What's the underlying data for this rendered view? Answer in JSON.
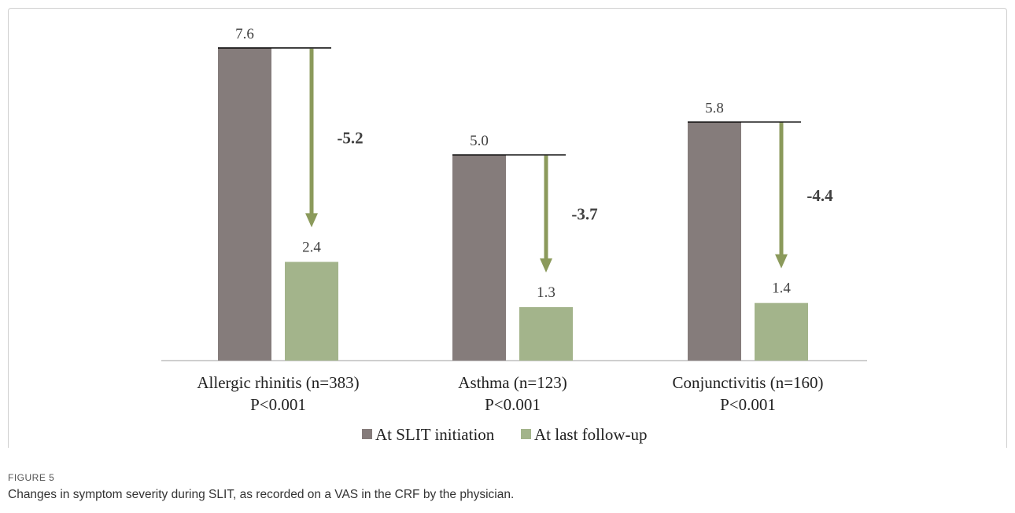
{
  "figure": {
    "label": "FIGURE 5",
    "caption": "Changes in symptom severity during SLIT, as recorded on a VAS in the CRF by the physician."
  },
  "colors": {
    "initiation": "#857c7b",
    "follow_up": "#a3b48b",
    "arrow": "#8b9a5b",
    "axis": "#bfbfbf",
    "level_line": "#000000"
  },
  "chart_data": {
    "type": "bar",
    "categories": [
      "Allergic rhinitis (n=383)",
      "Asthma (n=123)",
      "Conjunctivitis (n=160)"
    ],
    "p_values": [
      "P<0.001",
      "P<0.001",
      "P<0.001"
    ],
    "series": [
      {
        "name": "At SLIT initiation",
        "values": [
          7.6,
          5.0,
          5.8
        ],
        "labels": [
          "7.6",
          "5.0",
          "5.8"
        ]
      },
      {
        "name": "At last follow-up",
        "values": [
          2.4,
          1.3,
          1.4
        ],
        "labels": [
          "2.4",
          "1.3",
          "1.4"
        ]
      }
    ],
    "changes": [
      "-5.2",
      "-3.7",
      "-4.4"
    ],
    "legend_position": "bottom",
    "grid": false,
    "ylim": [
      0,
      7.6
    ]
  }
}
